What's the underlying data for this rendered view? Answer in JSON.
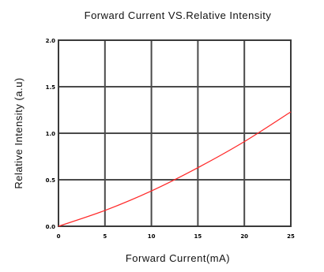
{
  "chart_data": {
    "type": "line",
    "title": "Forward Current VS.Relative Intensity",
    "xlabel": "Forward Current(mA)",
    "ylabel": "Relative Intensity (a.u)",
    "xlim": [
      0,
      25
    ],
    "ylim": [
      0,
      2.0
    ],
    "x_ticks": [
      "0",
      "5",
      "10",
      "15",
      "20",
      "25"
    ],
    "y_ticks": [
      "0.0",
      "0.5",
      "1.0",
      "1.5",
      "2.0"
    ],
    "grid": true,
    "series": [
      {
        "color": "#ff2a2a",
        "x": [
          0,
          5,
          10,
          15,
          20,
          25
        ],
        "y": [
          0.0,
          0.17,
          0.38,
          0.63,
          0.91,
          1.23
        ]
      }
    ]
  }
}
